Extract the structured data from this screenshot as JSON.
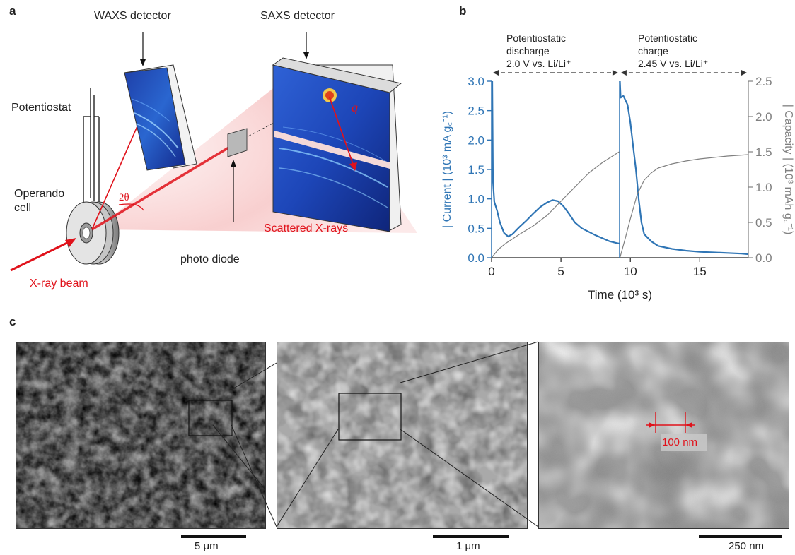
{
  "panel_a": {
    "letter": "a",
    "waxs_label": "WAXS detector",
    "saxs_label": "SAXS detector",
    "potentiostat_label": "Potentiostat",
    "cell_label_line1": "Operando",
    "cell_label_line2": "cell",
    "two_theta_label": "2θ",
    "q_label": "q",
    "photodiode_label": "photo diode",
    "scattered_label": "Scattered X-rays",
    "beam_label": "X-ray beam"
  },
  "panel_b": {
    "letter": "b",
    "discharge_line1": "Potentiostatic",
    "discharge_line2": "discharge",
    "discharge_line3": "2.0 V vs. Li/Li⁺",
    "charge_line1": "Potentiostatic",
    "charge_line2": "charge",
    "charge_line3": "2.45 V vs. Li/Li⁺"
  },
  "panel_c": {
    "letter": "c",
    "scale1": "5 μm",
    "scale2": "1 μm",
    "scale3": "250 nm",
    "measure_label": "100 nm"
  },
  "colors": {
    "current": "#2f75b5",
    "capacity": "#808080",
    "accent_red": "#e0121b"
  },
  "chart_data": {
    "type": "line",
    "xlabel": "Time (10³ s)",
    "ylabel_left": "| Current | (10³ mA g꜀⁻¹)",
    "ylabel_right": "| Capacity | (10³ mAh g꜀⁻¹)",
    "xlim": [
      0,
      18.5
    ],
    "ylim_left": [
      0,
      3.0
    ],
    "ylim_right": [
      0,
      2.5
    ],
    "x_ticks": [
      0,
      5,
      10,
      15
    ],
    "y_ticks_left": [
      0.0,
      0.5,
      1.0,
      1.5,
      2.0,
      2.5,
      3.0
    ],
    "y_ticks_right": [
      0.0,
      0.5,
      1.0,
      1.5,
      2.0,
      2.5
    ],
    "grid": false,
    "series": [
      {
        "name": "| Current |",
        "axis": "left",
        "color": "#2f75b5",
        "x": [
          0.05,
          0.1,
          0.2,
          0.4,
          0.6,
          0.9,
          1.2,
          1.5,
          2.0,
          2.5,
          3.0,
          3.5,
          4.0,
          4.4,
          4.8,
          5.2,
          5.6,
          6.0,
          6.5,
          7.0,
          7.5,
          8.0,
          8.5,
          9.0,
          9.2,
          9.25,
          9.3,
          9.5,
          9.8,
          10.0,
          10.2,
          10.4,
          10.6,
          10.8,
          11.0,
          11.5,
          12.0,
          13.0,
          14.0,
          15.0,
          16.0,
          17.0,
          18.0,
          18.5
        ],
        "y": [
          3.0,
          1.3,
          0.95,
          0.8,
          0.6,
          0.42,
          0.36,
          0.4,
          0.52,
          0.63,
          0.75,
          0.86,
          0.94,
          0.98,
          0.96,
          0.87,
          0.74,
          0.6,
          0.5,
          0.44,
          0.38,
          0.33,
          0.28,
          0.25,
          0.24,
          3.0,
          2.72,
          2.75,
          2.6,
          2.3,
          1.9,
          1.5,
          1.0,
          0.6,
          0.4,
          0.28,
          0.2,
          0.15,
          0.12,
          0.1,
          0.09,
          0.08,
          0.07,
          0.06
        ]
      },
      {
        "name": "| Capacity |",
        "axis": "right",
        "color": "#808080",
        "x": [
          0.0,
          0.5,
          1.0,
          2.0,
          3.0,
          4.0,
          5.0,
          6.0,
          7.0,
          8.0,
          9.2,
          9.25,
          9.6,
          10.0,
          10.5,
          11.0,
          11.5,
          12.0,
          13.0,
          14.0,
          15.0,
          16.0,
          17.0,
          18.5
        ],
        "y": [
          0.0,
          0.12,
          0.2,
          0.33,
          0.45,
          0.6,
          0.8,
          1.0,
          1.2,
          1.35,
          1.5,
          0.0,
          0.25,
          0.55,
          0.9,
          1.1,
          1.2,
          1.27,
          1.33,
          1.37,
          1.4,
          1.42,
          1.44,
          1.46
        ]
      }
    ]
  }
}
